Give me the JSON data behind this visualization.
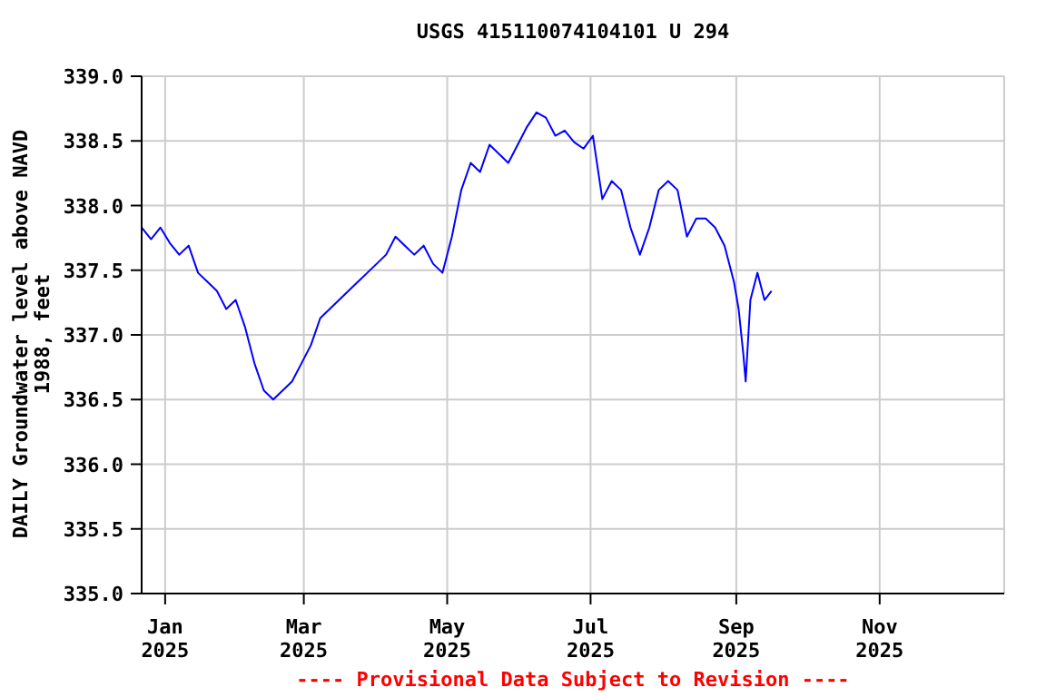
{
  "chart_data": {
    "type": "line",
    "title": "USGS 415110074104101 U 294",
    "ylabel": "DAILY Groundwater level above NAVD 1988, feet",
    "annotations": [
      "---- Provisional Data Subject to Revision ----"
    ],
    "x": [
      "2024-12-22",
      "2024-12-26",
      "2024-12-30",
      "2025-01-03",
      "2025-01-07",
      "2025-01-11",
      "2025-01-15",
      "2025-01-19",
      "2025-01-23",
      "2025-01-27",
      "2025-01-31",
      "2025-02-04",
      "2025-02-08",
      "2025-02-12",
      "2025-02-16",
      "2025-02-20",
      "2025-02-24",
      "2025-02-28",
      "2025-03-04",
      "2025-03-08",
      "2025-03-12",
      "2025-03-16",
      "2025-03-20",
      "2025-03-24",
      "2025-03-28",
      "2025-04-01",
      "2025-04-05",
      "2025-04-09",
      "2025-04-13",
      "2025-04-17",
      "2025-04-21",
      "2025-04-25",
      "2025-04-29",
      "2025-05-03",
      "2025-05-07",
      "2025-05-11",
      "2025-05-15",
      "2025-05-19",
      "2025-05-23",
      "2025-05-27",
      "2025-05-31",
      "2025-06-04",
      "2025-06-08",
      "2025-06-12",
      "2025-06-16",
      "2025-06-20",
      "2025-06-24",
      "2025-06-28",
      "2025-07-02",
      "2025-07-06",
      "2025-07-10",
      "2025-07-14",
      "2025-07-18",
      "2025-07-22",
      "2025-07-26",
      "2025-07-30",
      "2025-08-03",
      "2025-08-07",
      "2025-08-11",
      "2025-08-15",
      "2025-08-19",
      "2025-08-23",
      "2025-08-27",
      "2025-08-31",
      "2025-09-02",
      "2025-09-04",
      "2025-09-05",
      "2025-09-07",
      "2025-09-10",
      "2025-09-13",
      "2025-09-16"
    ],
    "series": [
      {
        "color": "#0000ff",
        "values": [
          337.83,
          337.74,
          337.83,
          337.71,
          337.62,
          337.69,
          337.48,
          337.41,
          337.34,
          337.2,
          337.27,
          337.06,
          336.78,
          336.57,
          336.5,
          336.57,
          336.64,
          336.78,
          336.92,
          337.13,
          337.2,
          337.27,
          337.34,
          337.41,
          337.48,
          337.55,
          337.62,
          337.76,
          337.69,
          337.62,
          337.69,
          337.55,
          337.48,
          337.76,
          338.12,
          338.33,
          338.26,
          338.47,
          338.4,
          338.33,
          338.47,
          338.61,
          338.72,
          338.68,
          338.54,
          338.58,
          338.49,
          338.44,
          338.54,
          338.05,
          338.19,
          338.12,
          337.83,
          337.62,
          337.83,
          338.12,
          338.19,
          338.12,
          337.76,
          337.9,
          337.9,
          337.83,
          337.69,
          337.41,
          337.2,
          336.85,
          336.64,
          337.27,
          337.48,
          337.27,
          337.34
        ]
      }
    ],
    "xlim": [
      "2024-12-22",
      "2025-12-24"
    ],
    "xticks": [
      {
        "value": "2025-01-01",
        "label": "Jan\n2025"
      },
      {
        "value": "2025-03-01",
        "label": "Mar\n2025"
      },
      {
        "value": "2025-05-01",
        "label": "May\n2025"
      },
      {
        "value": "2025-07-01",
        "label": "Jul\n2025"
      },
      {
        "value": "2025-09-01",
        "label": "Sep\n2025"
      },
      {
        "value": "2025-11-01",
        "label": "Nov\n2025"
      }
    ],
    "ylim": [
      335,
      339
    ],
    "yticks": [
      {
        "value": 335,
        "label": "335.0"
      },
      {
        "value": 335.5,
        "label": "335.5"
      },
      {
        "value": 336,
        "label": "336.0"
      },
      {
        "value": 336.5,
        "label": "336.5"
      },
      {
        "value": 337,
        "label": "337.0"
      },
      {
        "value": 337.5,
        "label": "337.5"
      },
      {
        "value": 338,
        "label": "338.0"
      },
      {
        "value": 338.5,
        "label": "338.5"
      },
      {
        "value": 339,
        "label": "339.0"
      }
    ],
    "grid": true,
    "legend": false,
    "marker": "none",
    "line_style": "solid"
  }
}
